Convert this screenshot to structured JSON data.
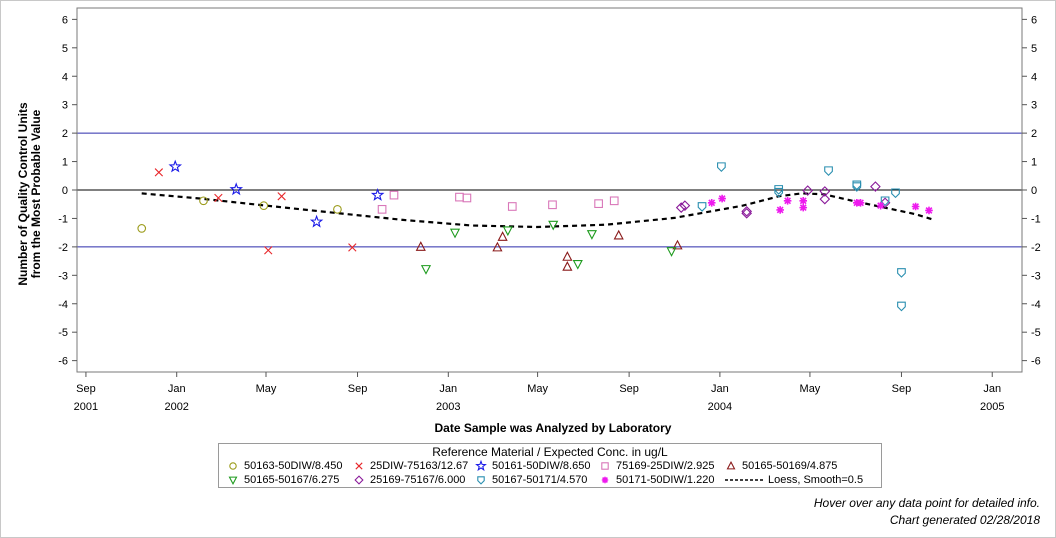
{
  "chart_data": {
    "type": "scatter",
    "xlabel": "Date Sample was Analyzed by Laboratory",
    "ylabel_lines": [
      "Number of Quality Control Units",
      "from the Most Probable Value"
    ],
    "ylim": [
      -6.4,
      6.4
    ],
    "xlim": [
      "2001-08-20",
      "2005-02-10"
    ],
    "y_ticks": [
      6,
      5,
      4,
      3,
      2,
      1,
      0,
      -1,
      -2,
      -3,
      -4,
      -5,
      -6
    ],
    "y_tick_labels": [
      "6",
      "5",
      "4",
      "3",
      "2",
      "1",
      "0",
      "-1",
      "-2",
      "-3",
      "-4",
      "-5",
      "-6"
    ],
    "x_ticks": [
      {
        "date": "2001-09-01",
        "label": "Sep",
        "year": "2001"
      },
      {
        "date": "2002-01-01",
        "label": "Jan",
        "year": "2002"
      },
      {
        "date": "2002-05-01",
        "label": "May",
        "year": ""
      },
      {
        "date": "2002-09-01",
        "label": "Sep",
        "year": ""
      },
      {
        "date": "2003-01-01",
        "label": "Jan",
        "year": "2003"
      },
      {
        "date": "2003-05-01",
        "label": "May",
        "year": ""
      },
      {
        "date": "2003-09-01",
        "label": "Sep",
        "year": ""
      },
      {
        "date": "2004-01-01",
        "label": "Jan",
        "year": "2004"
      },
      {
        "date": "2004-05-01",
        "label": "May",
        "year": ""
      },
      {
        "date": "2004-09-01",
        "label": "Sep",
        "year": ""
      },
      {
        "date": "2005-01-01",
        "label": "Jan",
        "year": "2005"
      }
    ],
    "reference_lines": [
      {
        "y": 2,
        "color": "#2b2bab"
      },
      {
        "y": 0,
        "color": "#000000"
      },
      {
        "y": -2,
        "color": "#2b2bab"
      }
    ],
    "grid": false,
    "legend_title": "Reference Material / Expected Conc. in ug/L",
    "legend_position": "bottom",
    "series": [
      {
        "name": "50163-50DIW/8.450",
        "marker": "circle",
        "color": "#9c9c1c",
        "points": [
          [
            "2001-11-15",
            -1.35
          ],
          [
            "2002-02-06",
            -0.38
          ],
          [
            "2002-04-28",
            -0.55
          ],
          [
            "2002-08-05",
            -0.68
          ]
        ]
      },
      {
        "name": "25DIW-75163/12.67",
        "marker": "x",
        "color": "#e8262a",
        "points": [
          [
            "2001-12-08",
            0.62
          ],
          [
            "2002-02-26",
            -0.28
          ],
          [
            "2002-05-04",
            -2.12
          ],
          [
            "2002-05-22",
            -0.22
          ],
          [
            "2002-08-25",
            -2.02
          ]
        ]
      },
      {
        "name": "50161-50DIW/8.650",
        "marker": "star",
        "color": "#1a1ae8",
        "points": [
          [
            "2001-12-30",
            0.82
          ],
          [
            "2002-03-22",
            0.02
          ],
          [
            "2002-07-08",
            -1.12
          ],
          [
            "2002-09-28",
            -0.18
          ]
        ]
      },
      {
        "name": "75169-25DIW/2.925",
        "marker": "square",
        "color": "#d977b9",
        "points": [
          [
            "2002-10-04",
            -0.68
          ],
          [
            "2002-10-20",
            -0.18
          ],
          [
            "2003-01-16",
            -0.25
          ],
          [
            "2003-01-26",
            -0.28
          ],
          [
            "2003-03-28",
            -0.58
          ],
          [
            "2003-05-21",
            -0.52
          ],
          [
            "2003-07-22",
            -0.48
          ],
          [
            "2003-08-12",
            -0.38
          ]
        ]
      },
      {
        "name": "50165-50169/4.875",
        "marker": "triangle",
        "color": "#8a1a1a",
        "points": [
          [
            "2002-11-25",
            -2.0
          ],
          [
            "2003-03-08",
            -2.02
          ],
          [
            "2003-03-15",
            -1.65
          ],
          [
            "2003-06-10",
            -2.35
          ],
          [
            "2003-06-10",
            -2.7
          ],
          [
            "2003-08-18",
            -1.6
          ],
          [
            "2003-11-05",
            -1.95
          ]
        ]
      },
      {
        "name": "50165-50167/6.275",
        "marker": "triangle-down",
        "color": "#1e9b1e",
        "points": [
          [
            "2002-12-02",
            -2.78
          ],
          [
            "2003-01-10",
            -1.5
          ],
          [
            "2003-03-22",
            -1.42
          ],
          [
            "2003-05-22",
            -1.22
          ],
          [
            "2003-06-24",
            -2.6
          ],
          [
            "2003-07-13",
            -1.55
          ],
          [
            "2003-10-28",
            -2.15
          ]
        ]
      },
      {
        "name": "25169-75167/6.000",
        "marker": "diamond",
        "color": "#8a1a9a",
        "points": [
          [
            "2003-11-10",
            -0.62
          ],
          [
            "2003-11-15",
            -0.55
          ],
          [
            "2004-02-06",
            -0.75
          ],
          [
            "2004-02-06",
            -0.82
          ],
          [
            "2004-04-28",
            -0.02
          ],
          [
            "2004-05-21",
            -0.05
          ],
          [
            "2004-05-21",
            -0.32
          ],
          [
            "2004-07-28",
            0.12
          ],
          [
            "2004-08-10",
            -0.45
          ]
        ]
      },
      {
        "name": "50167-50171/4.570",
        "marker": "shield",
        "color": "#2a8fb0",
        "points": [
          [
            "2003-12-08",
            -0.58
          ],
          [
            "2004-01-03",
            0.82
          ],
          [
            "2004-03-20",
            0.02
          ],
          [
            "2004-03-20",
            -0.08
          ],
          [
            "2004-05-26",
            0.68
          ],
          [
            "2004-07-03",
            0.18
          ],
          [
            "2004-07-03",
            0.12
          ],
          [
            "2004-08-10",
            -0.38
          ],
          [
            "2004-08-24",
            -0.1
          ],
          [
            "2004-09-01",
            -2.9
          ],
          [
            "2004-09-01",
            -4.08
          ]
        ]
      },
      {
        "name": "50171-50DIW/1.220",
        "marker": "asterisk",
        "color": "#ee1aee",
        "points": [
          [
            "2003-12-21",
            -0.45
          ],
          [
            "2004-01-04",
            -0.3
          ],
          [
            "2004-03-22",
            -0.7
          ],
          [
            "2004-04-01",
            -0.38
          ],
          [
            "2004-04-22",
            -0.62
          ],
          [
            "2004-04-22",
            -0.38
          ],
          [
            "2004-07-03",
            -0.45
          ],
          [
            "2004-07-08",
            -0.45
          ],
          [
            "2004-08-04",
            -0.55
          ],
          [
            "2004-09-20",
            -0.58
          ],
          [
            "2004-10-08",
            -0.72
          ]
        ]
      }
    ],
    "loess": {
      "name": "Loess, Smooth=0.5",
      "style": "dashed",
      "color": "#000000",
      "points": [
        [
          "2001-11-15",
          -0.12
        ],
        [
          "2002-02-01",
          -0.3
        ],
        [
          "2002-05-01",
          -0.55
        ],
        [
          "2002-08-01",
          -0.8
        ],
        [
          "2002-11-01",
          -1.05
        ],
        [
          "2003-02-01",
          -1.25
        ],
        [
          "2003-05-01",
          -1.3
        ],
        [
          "2003-08-01",
          -1.22
        ],
        [
          "2003-11-01",
          -0.98
        ],
        [
          "2004-02-01",
          -0.55
        ],
        [
          "2004-03-20",
          -0.22
        ],
        [
          "2004-04-20",
          -0.12
        ],
        [
          "2004-05-20",
          -0.15
        ],
        [
          "2004-07-01",
          -0.4
        ],
        [
          "2004-08-15",
          -0.65
        ],
        [
          "2004-09-20",
          -0.85
        ],
        [
          "2004-10-15",
          -1.05
        ]
      ]
    }
  },
  "footer": {
    "hover_note": "Hover over any data point for detailed info.",
    "generated_note": "Chart generated 02/28/2018"
  }
}
